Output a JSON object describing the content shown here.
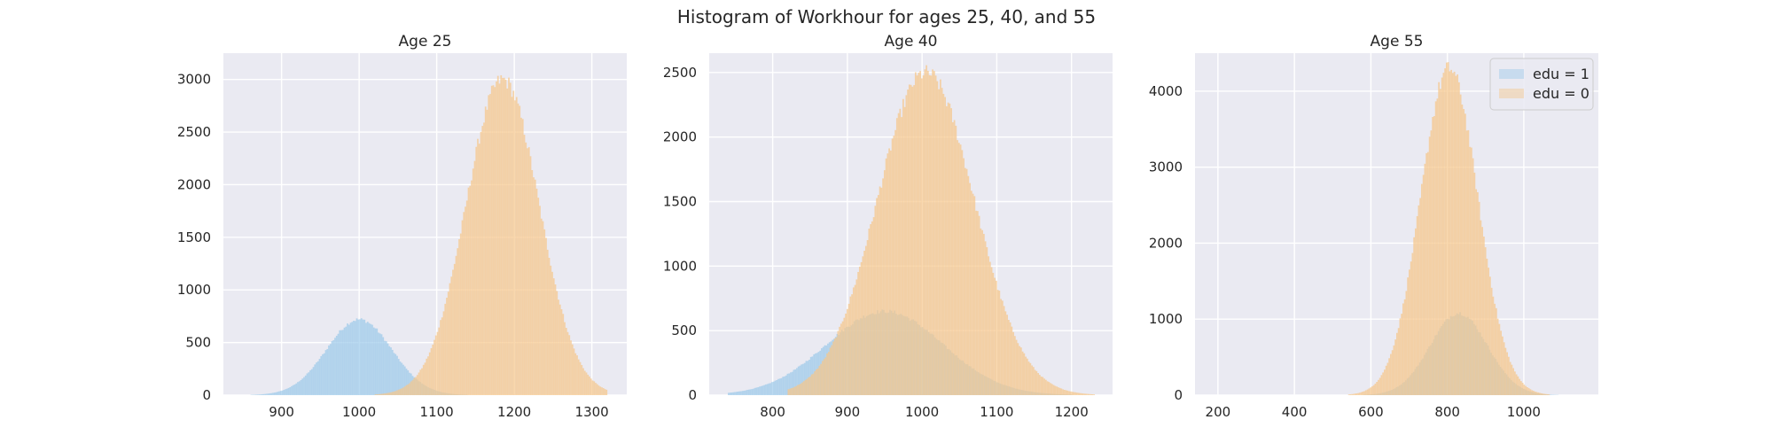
{
  "figure": {
    "title": "Histogram of Workhour for ages 25, 40, and 55",
    "background": "#ffffff"
  },
  "colors": {
    "panel_bg": "#eaeaf2",
    "grid": "#ffffff",
    "edu1": "#9ecae9",
    "edu0": "#f5c78c"
  },
  "chart_data": [
    {
      "type": "histogram",
      "title": "Age 25",
      "xlabel": "",
      "ylabel": "",
      "xlim": [
        825,
        1345
      ],
      "ylim": [
        0,
        3250
      ],
      "xticks": [
        900,
        1000,
        1100,
        1200,
        1300
      ],
      "yticks": [
        0,
        500,
        1000,
        1500,
        2000,
        2500,
        3000
      ],
      "grid": true,
      "series": [
        {
          "name": "edu = 1",
          "color": "#9ecae9",
          "opacity": 0.75,
          "mean": 1000,
          "sd": 42,
          "peak": 720,
          "range": [
            860,
            1140
          ]
        },
        {
          "name": "edu = 0",
          "color": "#f5c78c",
          "opacity": 0.75,
          "mean": 1185,
          "sd": 47,
          "peak": 3000,
          "range": [
            1000,
            1320
          ]
        }
      ]
    },
    {
      "type": "histogram",
      "title": "Age 40",
      "xlabel": "",
      "ylabel": "",
      "xlim": [
        715,
        1255
      ],
      "ylim": [
        0,
        2650
      ],
      "xticks": [
        800,
        900,
        1000,
        1100,
        1200
      ],
      "yticks": [
        0,
        500,
        1000,
        1500,
        2000,
        2500
      ],
      "grid": true,
      "series": [
        {
          "name": "edu = 1",
          "color": "#9ecae9",
          "opacity": 0.75,
          "mean": 950,
          "sd": 78,
          "peak": 650,
          "range": [
            740,
            1200
          ]
        },
        {
          "name": "edu = 0",
          "color": "#f5c78c",
          "opacity": 0.75,
          "mean": 1005,
          "sd": 65,
          "peak": 2500,
          "range": [
            820,
            1230
          ]
        }
      ]
    },
    {
      "type": "histogram",
      "title": "Age 55",
      "xlabel": "",
      "ylabel": "",
      "xlim": [
        140,
        1195
      ],
      "ylim": [
        0,
        4500
      ],
      "xticks": [
        200,
        400,
        600,
        800,
        1000
      ],
      "yticks": [
        0,
        1000,
        2000,
        3000,
        4000
      ],
      "grid": true,
      "legend": {
        "placement": "top-right",
        "entries": [
          {
            "label": "edu = 1",
            "color": "#9ecae9"
          },
          {
            "label": "edu = 0",
            "color": "#f5c78c"
          }
        ]
      },
      "series": [
        {
          "name": "edu = 1",
          "color": "#9ecae9",
          "opacity": 0.75,
          "mean": 830,
          "sd": 75,
          "peak": 1080,
          "range": [
            580,
            1090
          ]
        },
        {
          "name": "edu = 0",
          "color": "#f5c78c",
          "opacity": 0.75,
          "mean": 805,
          "sd": 75,
          "peak": 4300,
          "range": [
            500,
            1090
          ]
        }
      ]
    }
  ]
}
